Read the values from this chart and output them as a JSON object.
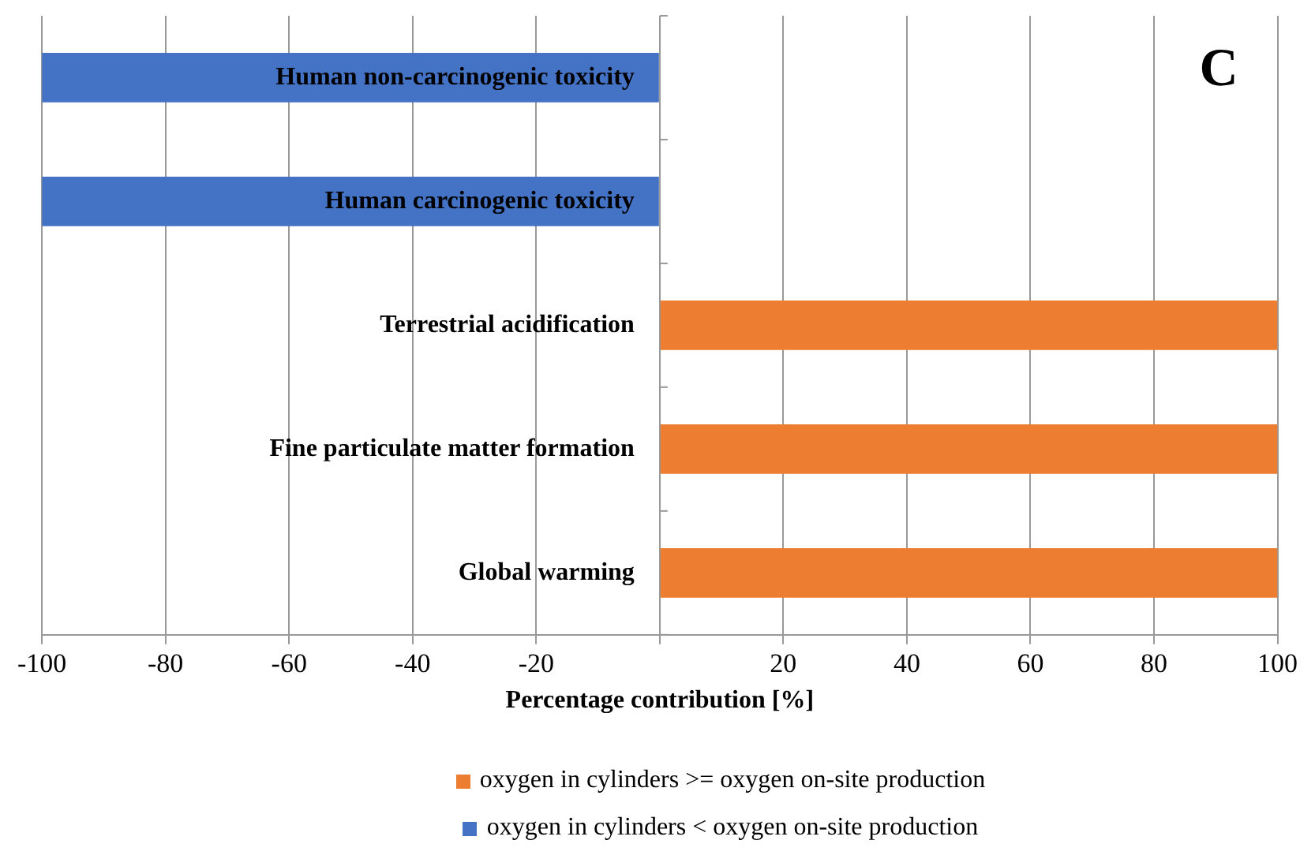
{
  "chart_data": {
    "type": "bar",
    "orientation": "horizontal",
    "stacked": true,
    "categories": [
      "Human non-carcinogenic toxicity",
      "Human carcinogenic toxicity",
      "Terrestrial acidification",
      "Fine particulate matter formation",
      "Global warming"
    ],
    "series": [
      {
        "name": "oxygen in cylinders >= oxygen on-site production",
        "color": "#ed7d31",
        "values": [
          null,
          null,
          100,
          100,
          100
        ]
      },
      {
        "name": "oxygen in cylinders < oxygen on-site production",
        "color": "#4472c4",
        "values": [
          -100,
          -100,
          null,
          null,
          null
        ]
      }
    ],
    "xlim": [
      -100,
      100
    ],
    "xticks": [
      -100,
      -80,
      -60,
      -40,
      -20,
      {
        "value": 0,
        "label": null
      },
      20,
      40,
      60,
      80,
      100
    ],
    "xlabel": "Percentage contribution [%]",
    "grid": "x",
    "legend": "bottom",
    "annotations": [
      "C"
    ]
  }
}
